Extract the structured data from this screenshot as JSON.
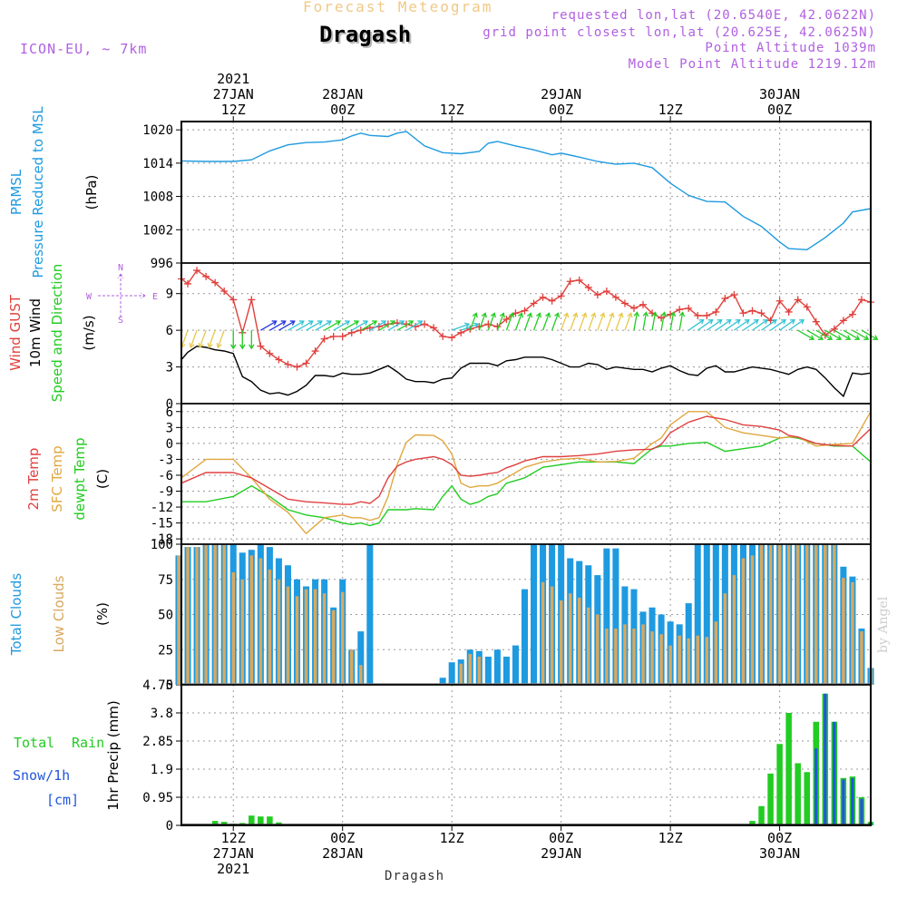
{
  "header": {
    "product": "Forecast Meteogram",
    "location": "Dragash",
    "model": "ICON-EU, ~ 7km",
    "requested": "requested lon,lat (20.6540E, 42.0622N)",
    "grid_point": "grid point closest lon,lat (20.625E, 42.0625N)",
    "point_altitude": "Point Altitude 1039m",
    "model_altitude": "Model Point Altitude 1219.12m",
    "footer_location": "Dragash",
    "watermark": "by Angel"
  },
  "time_axis": {
    "top": [
      {
        "label": "2021\n27JAN\n12Z",
        "hour": 12
      },
      {
        "label": "28JAN\n00Z",
        "hour": 24
      },
      {
        "label": "12Z",
        "hour": 36
      },
      {
        "label": "29JAN\n00Z",
        "hour": 48
      },
      {
        "label": "12Z",
        "hour": 60
      },
      {
        "label": "30JAN\n00Z",
        "hour": 72
      }
    ],
    "bottom": [
      {
        "label": "12Z\n27JAN\n2021",
        "hour": 12
      },
      {
        "label": "00Z\n28JAN",
        "hour": 24
      },
      {
        "label": "12Z",
        "hour": 36
      },
      {
        "label": "00Z\n29JAN",
        "hour": 48
      },
      {
        "label": "12Z",
        "hour": 60
      },
      {
        "label": "00Z\n30JAN",
        "hour": 72
      }
    ],
    "start_hour": 6.3,
    "end_hour": 82
  },
  "panels": {
    "pressure": {
      "labels": [
        "PRMSL",
        "Pressure Reduced to MSL"
      ],
      "unit": "(hPa)",
      "ticks": [
        "1020",
        "1014",
        "1008",
        "1002",
        "996"
      ]
    },
    "wind": {
      "labels": [
        "Wind GUST",
        "10m Wind",
        "Speed and Direction"
      ],
      "unit": "(m/s)",
      "ticks": [
        "9",
        "6",
        "3",
        "0"
      ],
      "compass": {
        "n": "N",
        "s": "S",
        "w": "W",
        "e": "E"
      }
    },
    "temp": {
      "labels": [
        "2m Temp",
        "SFC Temp",
        "dewpt Temp"
      ],
      "unit": "(C)",
      "ticks": [
        "6",
        "3",
        "0",
        "-3",
        "-6",
        "-9",
        "-12",
        "-15",
        "-18"
      ]
    },
    "clouds": {
      "labels": [
        "Total Clouds",
        "Low Clouds"
      ],
      "unit": "(%)",
      "ticks": [
        "100",
        "75",
        "50",
        "25",
        "0"
      ]
    },
    "precip": {
      "labels": [
        "Total",
        "Rain",
        "Snow/1h",
        "[cm]"
      ],
      "unit": "1hr Precip (mm)",
      "ticks": [
        "4.75",
        "3.8",
        "2.85",
        "1.9",
        "0.95",
        "0"
      ]
    }
  },
  "colors": {
    "pressure": "#1e9ae0",
    "gust": "#e0403c",
    "wind": "#000000",
    "arrow_green": "#22cc22",
    "arrow_cyan": "#33c4d4",
    "arrow_yellow": "#e6c84a",
    "arrow_blue": "#2233dd",
    "t2m": "#e04040",
    "tsfc": "#e0a840",
    "tdew": "#22cc22",
    "total_cloud": "#1e9ae0",
    "low_cloud": "#d8a860",
    "rain": "#22cc22",
    "snow": "#2255dd",
    "title": "#000000",
    "product": "#f0c888",
    "meta": "#b060e0"
  },
  "chart_data": [
    {
      "type": "line",
      "title": "PRMSL Pressure Reduced to MSL",
      "ylabel": "(hPa)",
      "ylim": [
        996,
        1021.5
      ],
      "x": [
        6.3,
        9,
        12,
        14,
        16,
        18,
        20,
        22,
        24,
        25,
        26,
        27,
        29,
        30,
        31,
        33,
        35,
        37,
        39,
        40,
        41,
        43,
        45,
        47,
        48,
        50,
        52,
        54,
        56,
        58,
        60,
        62,
        64,
        66,
        68,
        69,
        70,
        72,
        73,
        75,
        77,
        79,
        80,
        82
      ],
      "series": [
        {
          "name": "PRMSL",
          "values": [
            1014.4,
            1014.3,
            1014.3,
            1014.6,
            1016.2,
            1017.3,
            1017.7,
            1017.8,
            1018.2,
            1018.9,
            1019.4,
            1019.0,
            1018.8,
            1019.4,
            1019.7,
            1017.1,
            1015.9,
            1015.7,
            1016.1,
            1017.6,
            1017.9,
            1017.1,
            1016.4,
            1015.5,
            1015.8,
            1015.1,
            1014.3,
            1013.8,
            1014.0,
            1013.2,
            1010.4,
            1008.2,
            1007.1,
            1007.0,
            1004.4,
            1003.5,
            1002.6,
            999.8,
            998.6,
            998.4,
            1000.6,
            1003.2,
            1005.2,
            1005.8
          ]
        }
      ]
    },
    {
      "type": "line",
      "title": "Wind GUST / 10m Wind Speed and Direction",
      "ylabel": "(m/s)",
      "ylim": [
        0,
        11.5
      ],
      "x": [
        6.3,
        7,
        8,
        9,
        10,
        11,
        12,
        13,
        14,
        15,
        16,
        17,
        18,
        19,
        20,
        21,
        22,
        23,
        24,
        25,
        26,
        27,
        28,
        29,
        30,
        31,
        32,
        33,
        34,
        35,
        36,
        37,
        38,
        39,
        40,
        41,
        42,
        43,
        44,
        45,
        46,
        47,
        48,
        49,
        50,
        51,
        52,
        53,
        54,
        55,
        56,
        57,
        58,
        59,
        60,
        61,
        62,
        63,
        64,
        65,
        66,
        67,
        68,
        69,
        70,
        71,
        72,
        73,
        74,
        75,
        76,
        77,
        78,
        79,
        80,
        81,
        82
      ],
      "series": [
        {
          "name": "Wind GUST",
          "values": [
            10.2,
            9.8,
            10.9,
            10.4,
            9.9,
            9.2,
            8.5,
            5.8,
            8.5,
            4.7,
            4.1,
            3.6,
            3.2,
            3.0,
            3.3,
            4.3,
            5.3,
            5.5,
            5.5,
            5.8,
            6.0,
            6.2,
            6.3,
            6.5,
            6.6,
            6.5,
            6.3,
            6.5,
            6.2,
            5.5,
            5.4,
            5.8,
            6.1,
            6.3,
            6.5,
            6.3,
            6.9,
            7.4,
            7.6,
            8.2,
            8.7,
            8.4,
            8.8,
            10.0,
            10.1,
            9.5,
            8.9,
            9.2,
            8.7,
            8.2,
            7.8,
            8.1,
            7.4,
            7.0,
            7.3,
            7.7,
            7.8,
            7.2,
            7.2,
            7.5,
            8.6,
            8.9,
            7.4,
            7.6,
            7.4,
            6.8,
            8.4,
            7.5,
            8.5,
            7.9,
            6.7,
            5.6,
            6.1,
            6.8,
            7.3,
            8.5,
            8.3
          ]
        },
        {
          "name": "10m Wind",
          "values": [
            3.6,
            4.2,
            4.7,
            4.6,
            4.4,
            4.3,
            4.1,
            2.2,
            1.8,
            1.1,
            0.8,
            0.9,
            0.7,
            1.0,
            1.5,
            2.3,
            2.3,
            2.2,
            2.5,
            2.4,
            2.4,
            2.5,
            2.8,
            3.1,
            2.6,
            2.0,
            1.8,
            1.8,
            1.7,
            2.0,
            2.1,
            2.9,
            3.3,
            3.3,
            3.3,
            3.1,
            3.5,
            3.6,
            3.8,
            3.8,
            3.8,
            3.6,
            3.3,
            3.0,
            3.0,
            3.3,
            3.2,
            2.8,
            3.0,
            2.9,
            2.8,
            2.8,
            2.6,
            2.9,
            3.1,
            2.7,
            2.4,
            2.3,
            2.9,
            3.1,
            2.6,
            2.6,
            2.8,
            3.0,
            2.9,
            2.8,
            2.6,
            2.4,
            2.8,
            3.0,
            2.8,
            2.1,
            1.3,
            0.6,
            2.5,
            2.4,
            2.5
          ]
        }
      ]
    },
    {
      "type": "line",
      "title": "2m Temp / SFC Temp / dewpt Temp",
      "ylabel": "(C)",
      "ylim": [
        -19,
        7.5
      ],
      "x": [
        6.3,
        9,
        12,
        14,
        16,
        18,
        20,
        22,
        24,
        25,
        26,
        27,
        28,
        29,
        30,
        31,
        32,
        34,
        35,
        36,
        37,
        38,
        39,
        40,
        41,
        42,
        43,
        44,
        46,
        48,
        50,
        52,
        54,
        56,
        58,
        59,
        60,
        62,
        64,
        66,
        68,
        70,
        72,
        73,
        74,
        76,
        78,
        80,
        82
      ],
      "series": [
        {
          "name": "2m Temp",
          "values": [
            -7.5,
            -5.5,
            -5.5,
            -6.5,
            -8.5,
            -10.5,
            -11.0,
            -11.2,
            -11.5,
            -11.5,
            -11.0,
            -11.3,
            -10.0,
            -6.5,
            -4.3,
            -3.5,
            -3.0,
            -2.5,
            -3.0,
            -4.0,
            -6.0,
            -6.2,
            -6.0,
            -5.7,
            -5.5,
            -4.6,
            -4.0,
            -3.3,
            -2.5,
            -2.5,
            -2.3,
            -2.0,
            -1.5,
            -1.2,
            -1.1,
            -0.2,
            2.0,
            4.0,
            5.1,
            4.5,
            3.5,
            3.2,
            2.5,
            1.5,
            1.2,
            0.0,
            -0.4,
            -0.5,
            2.8
          ]
        },
        {
          "name": "SFC Temp",
          "values": [
            -6.5,
            -3.0,
            -3.0,
            -6.5,
            -10.5,
            -13.0,
            -17.0,
            -14.0,
            -13.5,
            -14.0,
            -14.0,
            -14.5,
            -14.0,
            -10.0,
            -4.0,
            0.2,
            1.6,
            1.5,
            0.5,
            -2.0,
            -7.5,
            -8.3,
            -8.0,
            -8.0,
            -7.5,
            -6.5,
            -5.5,
            -4.5,
            -3.5,
            -3.0,
            -2.8,
            -3.5,
            -3.4,
            -2.8,
            0.0,
            1.0,
            3.5,
            6.0,
            6.0,
            3.0,
            2.0,
            1.5,
            1.0,
            1.2,
            1.2,
            -0.5,
            -0.2,
            0.0,
            6.0
          ]
        },
        {
          "name": "dewpt Temp",
          "values": [
            -11.0,
            -11.0,
            -10.0,
            -8.0,
            -10.0,
            -12.5,
            -13.5,
            -14.0,
            -15.0,
            -15.3,
            -15.0,
            -15.5,
            -15.0,
            -12.5,
            -12.5,
            -12.5,
            -12.3,
            -12.5,
            -10.0,
            -8.0,
            -10.5,
            -11.5,
            -11.0,
            -10.0,
            -9.5,
            -7.5,
            -7.0,
            -6.5,
            -4.5,
            -4.0,
            -3.5,
            -3.5,
            -3.5,
            -3.8,
            -1.0,
            -0.5,
            -0.5,
            0.0,
            0.2,
            -1.5,
            -1.0,
            -0.5,
            1.0,
            1.2,
            1.0,
            0.0,
            -0.5,
            -0.5,
            -3.5
          ]
        }
      ]
    },
    {
      "type": "bar",
      "title": "Total Clouds / Low Clouds",
      "ylabel": "(%)",
      "ylim": [
        0,
        100
      ],
      "x": [
        6,
        7,
        8,
        9,
        10,
        11,
        12,
        13,
        14,
        15,
        16,
        17,
        18,
        19,
        20,
        21,
        22,
        23,
        24,
        25,
        26,
        27,
        28,
        29,
        30,
        31,
        32,
        33,
        34,
        35,
        36,
        37,
        38,
        39,
        40,
        41,
        42,
        43,
        44,
        45,
        46,
        47,
        48,
        49,
        50,
        51,
        52,
        53,
        54,
        55,
        56,
        57,
        58,
        59,
        60,
        61,
        62,
        63,
        64,
        65,
        66,
        67,
        68,
        69,
        70,
        71,
        72,
        73,
        74,
        75,
        76,
        77,
        78,
        79,
        80,
        81,
        82
      ],
      "series": [
        {
          "name": "Total Clouds",
          "values": [
            92,
            98,
            98,
            100,
            100,
            100,
            100,
            94,
            96,
            100,
            98,
            90,
            85,
            75,
            70,
            75,
            75,
            55,
            75,
            25,
            38,
            100,
            0,
            0,
            0,
            0,
            0,
            0,
            0,
            5,
            16,
            18,
            25,
            24,
            20,
            25,
            20,
            28,
            68,
            100,
            100,
            100,
            100,
            90,
            88,
            85,
            78,
            97,
            97,
            70,
            68,
            52,
            55,
            50,
            45,
            43,
            58,
            100,
            100,
            100,
            100,
            100,
            100,
            100,
            100,
            100,
            100,
            100,
            100,
            100,
            100,
            100,
            100,
            84,
            77,
            40,
            12
          ]
        },
        {
          "name": "Low Clouds",
          "values": [
            92,
            98,
            98,
            100,
            100,
            100,
            80,
            75,
            92,
            90,
            82,
            75,
            70,
            63,
            68,
            68,
            65,
            53,
            66,
            25,
            14,
            0,
            0,
            0,
            0,
            0,
            0,
            0,
            0,
            0,
            0,
            15,
            22,
            20,
            0,
            0,
            0,
            0,
            0,
            0,
            73,
            70,
            60,
            65,
            62,
            55,
            50,
            40,
            40,
            43,
            40,
            43,
            38,
            36,
            28,
            35,
            33,
            35,
            34,
            45,
            65,
            78,
            90,
            92,
            100,
            100,
            100,
            100,
            100,
            100,
            100,
            100,
            100,
            76,
            73,
            38,
            12
          ]
        }
      ]
    },
    {
      "type": "bar",
      "title": "Total Rain Snow/1h [cm]",
      "ylabel": "1hr Precip (mm)",
      "ylim": [
        0,
        4.75
      ],
      "x": [
        6,
        7,
        8,
        9,
        10,
        11,
        12,
        13,
        14,
        15,
        16,
        17,
        18,
        19,
        20,
        21,
        22,
        23,
        24,
        25,
        26,
        27,
        28,
        29,
        30,
        31,
        32,
        33,
        34,
        35,
        36,
        37,
        38,
        39,
        40,
        41,
        42,
        43,
        44,
        45,
        46,
        47,
        48,
        49,
        50,
        51,
        52,
        53,
        54,
        55,
        56,
        57,
        58,
        59,
        60,
        61,
        62,
        63,
        64,
        65,
        66,
        67,
        68,
        69,
        70,
        71,
        72,
        73,
        74,
        75,
        76,
        77,
        78,
        79,
        80,
        81,
        82
      ],
      "series": [
        {
          "name": "Total",
          "values": [
            0,
            0,
            0,
            0.04,
            0.15,
            0.12,
            0.06,
            0.08,
            0.33,
            0.3,
            0.3,
            0.1,
            0,
            0,
            0,
            0,
            0,
            0,
            0,
            0,
            0,
            0,
            0,
            0,
            0,
            0,
            0,
            0,
            0,
            0,
            0,
            0,
            0,
            0,
            0,
            0,
            0,
            0,
            0,
            0,
            0,
            0,
            0,
            0,
            0,
            0,
            0,
            0,
            0,
            0,
            0,
            0,
            0,
            0,
            0,
            0,
            0,
            0,
            0,
            0,
            0,
            0,
            0,
            0.15,
            0.65,
            1.75,
            2.75,
            3.8,
            2.1,
            1.8,
            3.5,
            4.45,
            3.5,
            1.6,
            1.65,
            0.95,
            0.12
          ]
        },
        {
          "name": "Snow/1h",
          "values": [
            0,
            0,
            0,
            0,
            0,
            0,
            0,
            0,
            0,
            0,
            0,
            0,
            0,
            0,
            0,
            0,
            0,
            0,
            0,
            0,
            0,
            0,
            0,
            0,
            0,
            0,
            0,
            0,
            0,
            0,
            0,
            0,
            0,
            0,
            0,
            0,
            0,
            0,
            0,
            0,
            0,
            0,
            0,
            0,
            0,
            0,
            0,
            0,
            0,
            0,
            0,
            0,
            0,
            0,
            0,
            0,
            0,
            0,
            0,
            0,
            0,
            0,
            0,
            0,
            0,
            0,
            0,
            0,
            0,
            0,
            2.6,
            4.45,
            3.5,
            1.55,
            1.6,
            0.9,
            0.1
          ]
        }
      ]
    }
  ]
}
